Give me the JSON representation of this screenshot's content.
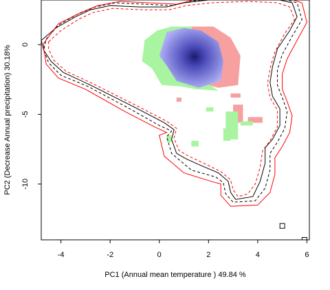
{
  "chart_data": {
    "type": "scatter",
    "title": "",
    "xlabel": "PC1 (Annual mean temperature ) 49.84 %",
    "ylabel": "PC2 (Decrease Annual precipitation) 30.18%",
    "xlim": [
      -4.8,
      6.1
    ],
    "ylim": [
      -14.0,
      3.2
    ],
    "xticks": [
      "-4",
      "-2",
      "0",
      "2",
      "4",
      "6"
    ],
    "xtick_values": [
      -4,
      -2,
      0,
      2,
      4,
      6
    ],
    "yticks": [
      "0",
      "-5",
      "-10"
    ],
    "ytick_values": [
      0,
      -5,
      -10
    ],
    "grid": false,
    "legend": "none",
    "colors": {
      "red_region": "#f6a0a0",
      "green_region": "#a8f4a0",
      "blue_core": "#1a1a70",
      "blue_light": "#b0b0f8",
      "black_outline": "#000000",
      "red_outline": "#ff0000"
    },
    "regions": {
      "red_fill": [
        [
          1.3,
          1.3
        ],
        [
          2.2,
          1.3
        ],
        [
          2.9,
          0.5
        ],
        [
          3.3,
          -0.8
        ],
        [
          3.2,
          -2.9
        ],
        [
          2.4,
          -3.1
        ],
        [
          1.2,
          -2.5
        ],
        [
          1.0,
          -0.5
        ]
      ],
      "green_fill": [
        [
          -0.6,
          0.3
        ],
        [
          -0.1,
          1.0
        ],
        [
          0.5,
          1.3
        ],
        [
          1.3,
          1.3
        ],
        [
          1.5,
          0.0
        ],
        [
          0.9,
          -2.0
        ],
        [
          1.9,
          -2.7
        ],
        [
          2.4,
          -3.3
        ],
        [
          1.5,
          -3.2
        ],
        [
          0.9,
          -3.0
        ],
        [
          0.1,
          -2.9
        ],
        [
          -0.3,
          -1.7
        ],
        [
          -0.7,
          -1.2
        ]
      ],
      "blue_fill": [
        [
          0.3,
          0.9
        ],
        [
          1.0,
          1.2
        ],
        [
          1.7,
          1.0
        ],
        [
          2.4,
          0.2
        ],
        [
          2.6,
          -1.2
        ],
        [
          2.5,
          -2.6
        ],
        [
          1.6,
          -3.1
        ],
        [
          0.7,
          -2.6
        ],
        [
          0.3,
          -1.5
        ],
        [
          0.0,
          -0.8
        ]
      ],
      "red_patches": [
        [
          [
            2.9,
            -3.5
          ],
          [
            3.3,
            -3.5
          ],
          [
            3.3,
            -3.8
          ],
          [
            2.9,
            -3.8
          ]
        ],
        [
          [
            3.0,
            -4.3
          ],
          [
            3.4,
            -4.3
          ],
          [
            3.4,
            -5.6
          ],
          [
            3.0,
            -5.6
          ]
        ],
        [
          [
            0.7,
            -3.8
          ],
          [
            0.9,
            -3.8
          ],
          [
            0.9,
            -4.1
          ],
          [
            0.7,
            -4.1
          ]
        ],
        [
          [
            3.6,
            -5.2
          ],
          [
            4.2,
            -5.2
          ],
          [
            4.2,
            -5.6
          ],
          [
            3.6,
            -5.6
          ]
        ]
      ],
      "green_patches": [
        [
          [
            2.7,
            -4.8
          ],
          [
            3.2,
            -4.8
          ],
          [
            3.2,
            -6.8
          ],
          [
            2.7,
            -6.8
          ]
        ],
        [
          [
            2.6,
            -6.0
          ],
          [
            2.9,
            -6.0
          ],
          [
            2.9,
            -6.9
          ],
          [
            2.6,
            -6.9
          ]
        ],
        [
          [
            1.9,
            -4.5
          ],
          [
            2.2,
            -4.5
          ],
          [
            2.2,
            -4.8
          ],
          [
            1.9,
            -4.8
          ]
        ],
        [
          [
            3.3,
            -5.5
          ],
          [
            3.8,
            -5.5
          ],
          [
            3.8,
            -5.8
          ],
          [
            3.3,
            -5.8
          ]
        ],
        [
          [
            1.3,
            -6.9
          ],
          [
            1.6,
            -6.9
          ],
          [
            1.6,
            -7.3
          ],
          [
            1.3,
            -7.3
          ]
        ],
        [
          [
            0.3,
            -6.5
          ],
          [
            0.5,
            -6.5
          ],
          [
            0.5,
            -7.0
          ],
          [
            0.3,
            -7.0
          ]
        ]
      ]
    },
    "outline_series": [
      {
        "line_style": "solid",
        "color": "black",
        "points": [
          [
            -4.8,
            0.3
          ],
          [
            -4.2,
            1.2
          ],
          [
            -3.4,
            2.0
          ],
          [
            -2.8,
            2.5
          ],
          [
            -2.0,
            2.8
          ],
          [
            -0.8,
            2.7
          ],
          [
            0.3,
            2.7
          ],
          [
            1.0,
            3.0
          ],
          [
            2.0,
            3.2
          ],
          [
            3.5,
            3.3
          ],
          [
            4.9,
            3.2
          ],
          [
            5.4,
            3.0
          ],
          [
            5.6,
            2.0
          ],
          [
            5.3,
            1.0
          ],
          [
            4.8,
            -0.3
          ],
          [
            4.6,
            -1.6
          ],
          [
            4.5,
            -2.7
          ],
          [
            4.6,
            -3.7
          ],
          [
            4.9,
            -4.6
          ],
          [
            4.9,
            -5.8
          ],
          [
            4.6,
            -6.8
          ],
          [
            4.3,
            -7.4
          ],
          [
            4.3,
            -8.5
          ],
          [
            4.1,
            -9.8
          ],
          [
            3.8,
            -10.9
          ],
          [
            3.1,
            -11.1
          ],
          [
            2.9,
            -10.6
          ],
          [
            2.8,
            -9.8
          ],
          [
            2.4,
            -9.2
          ],
          [
            1.6,
            -8.6
          ],
          [
            1.1,
            -8.2
          ],
          [
            0.7,
            -7.8
          ],
          [
            0.5,
            -6.8
          ],
          [
            0.6,
            -6.1
          ],
          [
            0.2,
            -5.6
          ],
          [
            -1.0,
            -4.5
          ],
          [
            -2.8,
            -2.9
          ],
          [
            -3.9,
            -2.0
          ],
          [
            -4.4,
            -1.2
          ],
          [
            -4.7,
            -0.4
          ]
        ]
      },
      {
        "line_style": "dashed",
        "color": "black",
        "points": [
          [
            -4.6,
            0.4
          ],
          [
            -4.1,
            1.4
          ],
          [
            -3.3,
            2.2
          ],
          [
            -2.6,
            2.7
          ],
          [
            -1.8,
            3.0
          ],
          [
            -0.6,
            2.9
          ],
          [
            0.5,
            2.8
          ],
          [
            1.2,
            3.1
          ],
          [
            2.2,
            3.3
          ],
          [
            3.7,
            3.4
          ],
          [
            5.0,
            3.3
          ],
          [
            5.6,
            3.0
          ],
          [
            5.8,
            1.8
          ],
          [
            5.4,
            0.6
          ],
          [
            5.0,
            -0.7
          ],
          [
            4.8,
            -1.8
          ],
          [
            4.8,
            -2.9
          ],
          [
            5.0,
            -3.8
          ],
          [
            5.2,
            -4.8
          ],
          [
            5.1,
            -6.0
          ],
          [
            4.8,
            -7.0
          ],
          [
            4.5,
            -7.8
          ],
          [
            4.5,
            -9.0
          ],
          [
            4.3,
            -10.3
          ],
          [
            3.9,
            -11.2
          ],
          [
            3.0,
            -11.3
          ],
          [
            2.7,
            -10.7
          ],
          [
            2.6,
            -9.9
          ],
          [
            2.3,
            -9.5
          ],
          [
            1.3,
            -9.0
          ],
          [
            0.9,
            -8.4
          ],
          [
            0.5,
            -7.8
          ],
          [
            0.3,
            -6.6
          ],
          [
            0.5,
            -6.2
          ],
          [
            0.0,
            -5.8
          ],
          [
            -1.2,
            -4.6
          ],
          [
            -2.9,
            -3.0
          ],
          [
            -4.0,
            -2.2
          ],
          [
            -4.5,
            -1.3
          ],
          [
            -4.7,
            -0.4
          ]
        ]
      },
      {
        "line_style": "solid",
        "color": "red",
        "points": [
          [
            -4.7,
            0.1
          ],
          [
            -4.1,
            1.5
          ],
          [
            -3.2,
            2.3
          ],
          [
            -2.5,
            2.8
          ],
          [
            -1.6,
            3.1
          ],
          [
            -0.4,
            3.0
          ],
          [
            0.7,
            2.9
          ],
          [
            1.4,
            3.2
          ],
          [
            2.4,
            3.4
          ],
          [
            3.9,
            3.5
          ],
          [
            5.1,
            3.4
          ],
          [
            5.8,
            3.0
          ],
          [
            6.0,
            1.6
          ],
          [
            5.6,
            0.3
          ],
          [
            5.2,
            -1.0
          ],
          [
            5.0,
            -2.1
          ],
          [
            5.0,
            -3.2
          ],
          [
            5.2,
            -4.1
          ],
          [
            5.4,
            -5.1
          ],
          [
            5.3,
            -6.3
          ],
          [
            5.0,
            -7.3
          ],
          [
            4.7,
            -8.1
          ],
          [
            4.7,
            -9.3
          ],
          [
            4.5,
            -10.6
          ],
          [
            4.0,
            -11.5
          ],
          [
            2.9,
            -11.6
          ],
          [
            2.5,
            -10.8
          ],
          [
            2.5,
            -10.0
          ],
          [
            2.1,
            -9.8
          ],
          [
            1.0,
            -9.2
          ],
          [
            0.6,
            -8.6
          ],
          [
            0.2,
            -8.0
          ],
          [
            0.0,
            -6.5
          ],
          [
            0.3,
            -6.3
          ],
          [
            -0.2,
            -5.9
          ],
          [
            -1.4,
            -4.8
          ],
          [
            -3.0,
            -3.2
          ],
          [
            -4.1,
            -2.4
          ],
          [
            -4.6,
            -1.4
          ],
          [
            -4.7,
            -0.3
          ]
        ]
      },
      {
        "line_style": "dashed",
        "color": "red",
        "points": [
          [
            -4.5,
            0.2
          ],
          [
            -4.0,
            1.0
          ],
          [
            -3.3,
            1.8
          ],
          [
            -2.7,
            2.3
          ],
          [
            -1.9,
            2.6
          ],
          [
            -0.7,
            2.5
          ],
          [
            0.4,
            2.5
          ],
          [
            1.1,
            2.8
          ],
          [
            2.1,
            3.0
          ],
          [
            3.6,
            3.1
          ],
          [
            4.8,
            3.0
          ],
          [
            5.3,
            2.7
          ],
          [
            5.5,
            1.8
          ],
          [
            5.1,
            0.8
          ],
          [
            4.7,
            -0.5
          ],
          [
            4.5,
            -1.7
          ],
          [
            4.4,
            -2.8
          ],
          [
            4.5,
            -3.8
          ],
          [
            4.8,
            -4.7
          ],
          [
            4.8,
            -5.9
          ],
          [
            4.5,
            -6.9
          ],
          [
            4.2,
            -7.6
          ],
          [
            4.1,
            -8.8
          ],
          [
            3.9,
            -10.0
          ],
          [
            3.6,
            -10.7
          ],
          [
            3.2,
            -10.9
          ],
          [
            3.0,
            -10.4
          ],
          [
            2.9,
            -9.7
          ],
          [
            2.5,
            -9.1
          ],
          [
            1.8,
            -8.5
          ],
          [
            1.2,
            -8.0
          ],
          [
            0.8,
            -7.6
          ],
          [
            0.6,
            -6.7
          ],
          [
            0.7,
            -6.0
          ],
          [
            0.3,
            -5.5
          ],
          [
            -0.9,
            -4.4
          ],
          [
            -2.7,
            -2.8
          ],
          [
            -3.8,
            -1.9
          ],
          [
            -4.3,
            -1.1
          ],
          [
            -4.5,
            -0.3
          ]
        ]
      }
    ],
    "small_squares": [
      [
        5.0,
        -13.0
      ],
      [
        5.9,
        -14.0
      ]
    ]
  }
}
